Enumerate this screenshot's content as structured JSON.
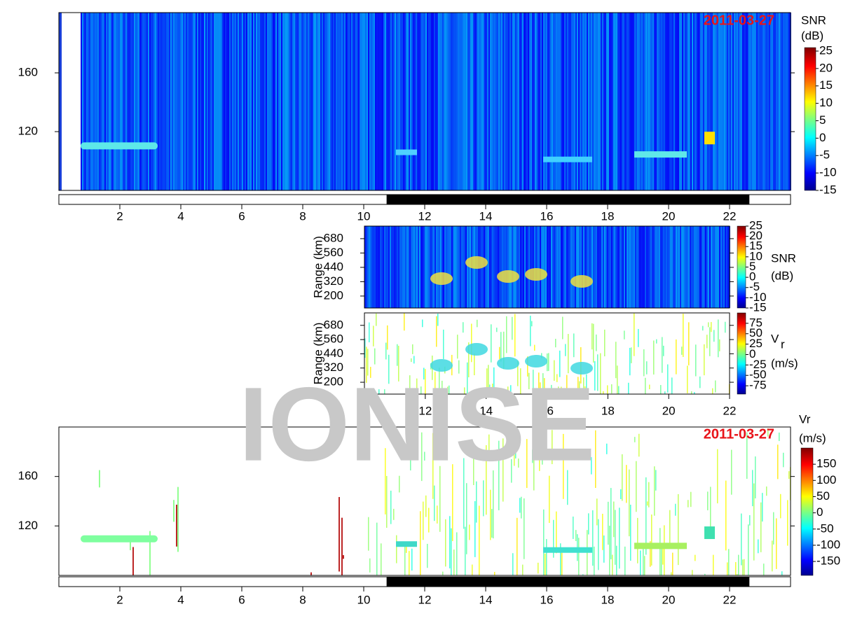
{
  "watermark": "IONISE",
  "panels": [
    {
      "date": "2011-03-27",
      "colorbar_title": "SNR",
      "colorbar_unit": "(dB)",
      "clim": [
        -15,
        26
      ],
      "colorbar_ticks": [
        25,
        20,
        15,
        10,
        5,
        0,
        -5,
        -10,
        -15
      ],
      "xlim": [
        0,
        24
      ],
      "xticks": [
        2,
        4,
        6,
        8,
        10,
        12,
        14,
        16,
        18,
        20,
        22
      ],
      "ylim": [
        80,
        201
      ],
      "yticks": [
        120,
        160
      ],
      "night_band": [
        10.75,
        22.65
      ]
    },
    {
      "ylabel": "Range (km)",
      "colorbar_title": "SNR",
      "colorbar_unit": "(dB)",
      "clim": [
        -15,
        25
      ],
      "colorbar_ticks": [
        25,
        20,
        15,
        10,
        5,
        0,
        -5,
        -10,
        -15
      ],
      "xlim": [
        10,
        22
      ],
      "ylim": [
        100,
        785
      ],
      "yticks": [
        200,
        320,
        440,
        560,
        680
      ]
    },
    {
      "ylabel": "Range (km)",
      "colorbar_title": "V",
      "colorbar_sub": "r",
      "colorbar_unit": "(m/s)",
      "clim": [
        -95,
        100
      ],
      "colorbar_ticks": [
        75,
        50,
        25,
        0,
        -25,
        -50,
        -75
      ],
      "xlim": [
        10,
        22
      ],
      "xticks": [
        12,
        14,
        16,
        18,
        20,
        22
      ],
      "ylim": [
        100,
        785
      ],
      "yticks": [
        200,
        320,
        440,
        560,
        680
      ]
    },
    {
      "date": "2011-03-27",
      "colorbar_title": "Vr",
      "colorbar_unit": "(m/s)",
      "clim": [
        -193,
        200
      ],
      "colorbar_ticks": [
        150,
        100,
        50,
        0,
        -50,
        -100,
        -150
      ],
      "xlim": [
        0,
        24
      ],
      "xticks": [
        2,
        4,
        6,
        8,
        10,
        12,
        14,
        16,
        18,
        20,
        22
      ],
      "ylim": [
        80,
        200
      ],
      "yticks": [
        120,
        160
      ],
      "night_band": [
        10.75,
        22.65
      ]
    }
  ]
}
